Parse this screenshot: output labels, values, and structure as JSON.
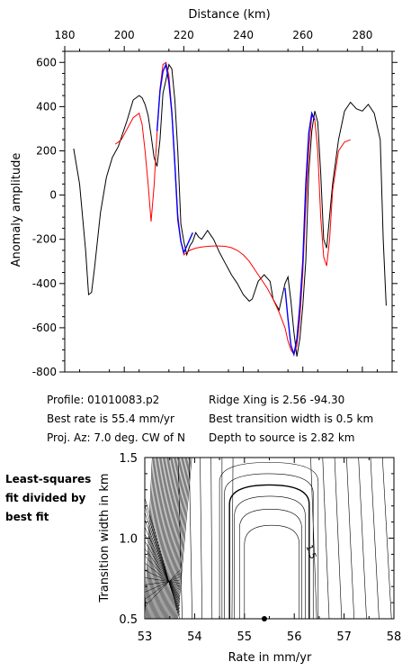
{
  "info": {
    "profile": "Profile: 01010083.p2",
    "best_rate": "Best rate is 55.4 mm/yr",
    "proj_az": "Proj. Az: 7.0 deg. CW of N",
    "ridge_xing": "Ridge Xing is 2.56 -94.30",
    "best_width": "Best transition width is 0.5 km",
    "depth": "Depth to source is   2.82 km"
  },
  "side_note": {
    "line1": "Least-squares",
    "line2": "fit divided by",
    "line3": "best fit"
  },
  "colors": {
    "observed": "#000000",
    "model": "#ff0000",
    "fit_window": "#0000ff"
  },
  "chart_data": [
    {
      "type": "line",
      "xlabel": "Distance (km)",
      "ylabel": "Anomaly amplitude",
      "xlim": [
        180,
        290
      ],
      "ylim": [
        -800,
        650
      ],
      "x_ticks": [
        180,
        200,
        220,
        240,
        260,
        280
      ],
      "y_ticks": [
        600,
        400,
        200,
        0,
        -200,
        -400,
        -600,
        -800
      ],
      "x_axis_position": "top",
      "grid": false,
      "series": [
        {
          "role": "observed",
          "color": "#000000",
          "x": [
            183,
            185,
            187,
            188,
            189,
            190,
            192,
            194,
            196,
            198,
            200,
            201,
            203,
            205,
            206,
            207,
            208,
            209,
            210,
            211,
            212,
            213,
            214,
            215,
            216,
            217,
            218,
            219,
            220,
            221,
            222,
            223,
            224,
            225,
            226,
            227,
            228,
            229,
            230,
            232,
            234,
            236,
            238,
            240,
            242,
            243,
            245,
            247,
            249,
            250,
            252,
            254,
            255,
            256,
            257,
            258,
            259,
            260,
            261,
            262,
            263,
            264,
            265,
            266,
            267,
            268,
            270,
            272,
            274,
            276,
            278,
            280,
            282,
            284,
            286,
            287,
            288
          ],
          "y": [
            210,
            50,
            -250,
            -450,
            -440,
            -330,
            -80,
            80,
            170,
            220,
            300,
            340,
            430,
            450,
            440,
            410,
            360,
            270,
            170,
            130,
            250,
            460,
            520,
            590,
            570,
            430,
            200,
            -130,
            -210,
            -270,
            -230,
            -210,
            -170,
            -190,
            -200,
            -180,
            -160,
            -180,
            -200,
            -260,
            -310,
            -360,
            -400,
            -450,
            -480,
            -470,
            -390,
            -360,
            -390,
            -470,
            -520,
            -400,
            -370,
            -480,
            -620,
            -730,
            -650,
            -500,
            -300,
            100,
            290,
            380,
            330,
            100,
            -200,
            -240,
            50,
            250,
            380,
            420,
            390,
            380,
            410,
            370,
            250,
            -200,
            -500
          ],
          "notes": "sampled trace"
        },
        {
          "role": "model",
          "color": "#ff0000",
          "x": [
            197,
            199,
            201,
            203,
            205,
            206,
            207,
            208,
            209,
            210,
            211,
            212,
            213,
            214,
            215,
            216,
            217,
            218,
            219,
            220,
            221,
            222,
            224,
            226,
            228,
            230,
            232,
            234,
            236,
            238,
            240,
            242,
            244,
            246,
            248,
            250,
            252,
            254,
            255,
            256,
            257,
            258,
            259,
            260,
            261,
            262,
            263,
            264,
            265,
            266,
            267,
            268,
            269,
            270,
            272,
            274,
            276
          ],
          "y": [
            230,
            250,
            300,
            350,
            370,
            320,
            200,
            50,
            -120,
            40,
            280,
            480,
            590,
            600,
            540,
            380,
            150,
            -90,
            -210,
            -270,
            -260,
            -250,
            -240,
            -235,
            -232,
            -230,
            -230,
            -232,
            -238,
            -250,
            -270,
            -300,
            -340,
            -380,
            -420,
            -470,
            -530,
            -600,
            -660,
            -700,
            -720,
            -680,
            -560,
            -350,
            -50,
            200,
            360,
            340,
            200,
            -100,
            -280,
            -320,
            -200,
            20,
            200,
            240,
            250
          ]
        },
        {
          "role": "fit_window",
          "color": "#0000ff",
          "x": [
            211,
            212,
            213,
            214,
            215,
            216,
            217,
            218,
            219,
            220,
            221,
            222,
            223
          ],
          "y": [
            290,
            470,
            560,
            590,
            510,
            370,
            140,
            -110,
            -210,
            -260,
            -230,
            -200,
            -170
          ]
        },
        {
          "role": "fit_window",
          "color": "#0000ff",
          "x": [
            254,
            255,
            256,
            257,
            258,
            259,
            260,
            261,
            262,
            263,
            264
          ],
          "y": [
            -420,
            -560,
            -680,
            -720,
            -650,
            -500,
            -300,
            50,
            280,
            370,
            340
          ]
        }
      ]
    },
    {
      "type": "contour",
      "xlabel": "Rate in mm/yr",
      "ylabel": "Transition width in km",
      "xlim": [
        53,
        58
      ],
      "ylim": [
        0.5,
        1.5
      ],
      "x_ticks": [
        53,
        54,
        55,
        56,
        57,
        58
      ],
      "y_ticks": [
        0.5,
        1.0,
        1.5
      ],
      "best_fit_point": {
        "x": 55.4,
        "y": 0.5
      },
      "contour_label": "1.5",
      "grid": false
    }
  ]
}
